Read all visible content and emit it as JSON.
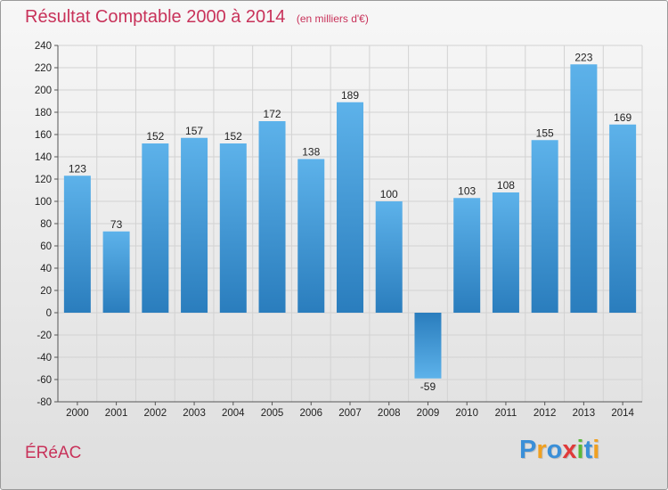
{
  "chart_data": {
    "type": "bar",
    "title": "Résultat Comptable 2000 à 2014",
    "subtitle": "(en milliers d'€)",
    "categories": [
      "2000",
      "2001",
      "2002",
      "2003",
      "2004",
      "2005",
      "2006",
      "2007",
      "2008",
      "2009",
      "2010",
      "2011",
      "2012",
      "2013",
      "2014"
    ],
    "values": [
      123,
      73,
      152,
      157,
      152,
      172,
      138,
      189,
      100,
      -59,
      103,
      108,
      155,
      223,
      169
    ],
    "ylim": [
      -80,
      240
    ],
    "yticks": [
      -80,
      -60,
      -40,
      -20,
      0,
      20,
      40,
      60,
      80,
      100,
      120,
      140,
      160,
      180,
      200,
      220,
      240
    ],
    "grid": true,
    "xlabel": "",
    "ylabel": ""
  },
  "footer": {
    "commune": "ÉRéAC",
    "brand_letters": [
      "P",
      "r",
      "o",
      "x",
      "i",
      "t",
      "i"
    ]
  },
  "colors": {
    "title": "#c8325a",
    "bar_light": "#5aaee8",
    "bar_dark": "#2a7fc0",
    "brand": [
      "#3a8fd8",
      "#f0a020",
      "#3a8fd8",
      "#e03a3a",
      "#5ab83a",
      "#3a8fd8",
      "#f0a020"
    ]
  }
}
